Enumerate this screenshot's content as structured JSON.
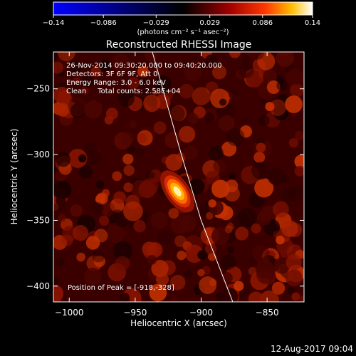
{
  "chart_data": {
    "type": "heatmap",
    "title": "Reconstructed RHESSI Image",
    "xlabel": "Heliocentric X (arcsec)",
    "ylabel": "Heliocentric Y (arcsec)",
    "xlim": [
      -1012,
      -822
    ],
    "ylim": [
      -412,
      -222
    ],
    "x_ticks": [
      -1000,
      -950,
      -900,
      -850
    ],
    "y_ticks": [
      -400,
      -350,
      -300,
      -250
    ],
    "x_tick_labels": [
      "−1000",
      "−950",
      "−900",
      "−850"
    ],
    "y_tick_labels": [
      "−400",
      "−350",
      "−300",
      "−250"
    ],
    "colorbar": {
      "range": [
        -0.14,
        0.14
      ],
      "ticks": [
        -0.14,
        -0.086,
        -0.029,
        0.029,
        0.086,
        0.14
      ],
      "tick_labels": [
        "−0.14",
        "−0.086",
        "−0.029",
        "0.029",
        "0.086",
        "0.14"
      ],
      "units_label": "(photons cm⁻² s⁻¹ asec⁻²)",
      "colormap": "blue-black-red-yellow-white"
    },
    "annotations": [
      "26-Nov-2014 09:30:20.000 to 09:40:20.000",
      "Detectors: 3F 6F 9F, Att 0",
      "Energy Range: 3.0 - 6.0 keV",
      "Clean     Total counts: 2.58E+04"
    ],
    "peak": {
      "x": -918,
      "y": -328,
      "label": "Position of Peak = [-918,-328]"
    },
    "limb_points": [
      [
        -937,
        -222
      ],
      [
        -915,
        -300
      ],
      [
        -900,
        -350
      ],
      [
        -876,
        -412
      ]
    ],
    "grid": false
  },
  "footer": {
    "timestamp": "12-Aug-2017 09:04"
  },
  "colors": {
    "background": "#000000",
    "text": "#ffffff",
    "limb": "#ffffff"
  }
}
